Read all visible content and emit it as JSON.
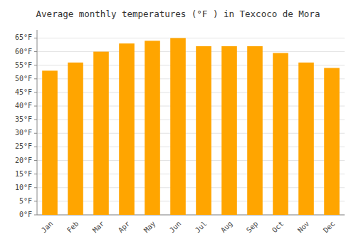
{
  "chart_data": {
    "type": "bar",
    "title": "Average monthly temperatures (°F ) in Texcoco de Mora",
    "categories": [
      "Jan",
      "Feb",
      "Mar",
      "Apr",
      "May",
      "Jun",
      "Jul",
      "Aug",
      "Sep",
      "Oct",
      "Nov",
      "Dec"
    ],
    "values": [
      53.0,
      56.0,
      60.0,
      63.0,
      64.0,
      65.0,
      62.0,
      62.0,
      62.0,
      59.5,
      56.0,
      54.0
    ],
    "color": "#FFA500",
    "ylim": [
      0,
      68
    ],
    "yticks": [
      {
        "value": 0,
        "label": "0°F"
      },
      {
        "value": 5,
        "label": "5°F"
      },
      {
        "value": 10,
        "label": "10°F"
      },
      {
        "value": 15,
        "label": "15°F"
      },
      {
        "value": 20,
        "label": "20°F"
      },
      {
        "value": 25,
        "label": "25°F"
      },
      {
        "value": 30,
        "label": "30°F"
      },
      {
        "value": 35,
        "label": "35°F"
      },
      {
        "value": 40,
        "label": "40°F"
      },
      {
        "value": 45,
        "label": "45°F"
      },
      {
        "value": 50,
        "label": "50°F"
      },
      {
        "value": 55,
        "label": "55°F"
      },
      {
        "value": 60,
        "label": "60°F"
      },
      {
        "value": 65,
        "label": "65°F"
      }
    ],
    "grid": true
  }
}
